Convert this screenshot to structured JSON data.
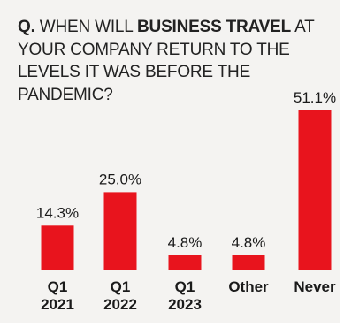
{
  "question": {
    "prefix": "Q.",
    "text_before": "When will",
    "text_emphasis": "business travel",
    "text_after": "at your company return to the levels it was before the pandemic?"
  },
  "colors": {
    "bar": "#e8141d",
    "background": "#f4f3f1",
    "text": "#1a1a1a"
  },
  "chart_data": {
    "type": "bar",
    "title": "",
    "xlabel": "",
    "ylabel": "",
    "categories": [
      [
        "Q1",
        "2021"
      ],
      [
        "Q1",
        "2022"
      ],
      [
        "Q1",
        "2023"
      ],
      [
        "Other"
      ],
      [
        "Never"
      ]
    ],
    "values": [
      14.3,
      25.0,
      4.8,
      4.8,
      51.1
    ],
    "value_labels": [
      "14.3%",
      "25.0%",
      "4.8%",
      "4.8%",
      "51.1%"
    ],
    "ylim": [
      0,
      51.1
    ],
    "grid": false,
    "legend": "none"
  }
}
